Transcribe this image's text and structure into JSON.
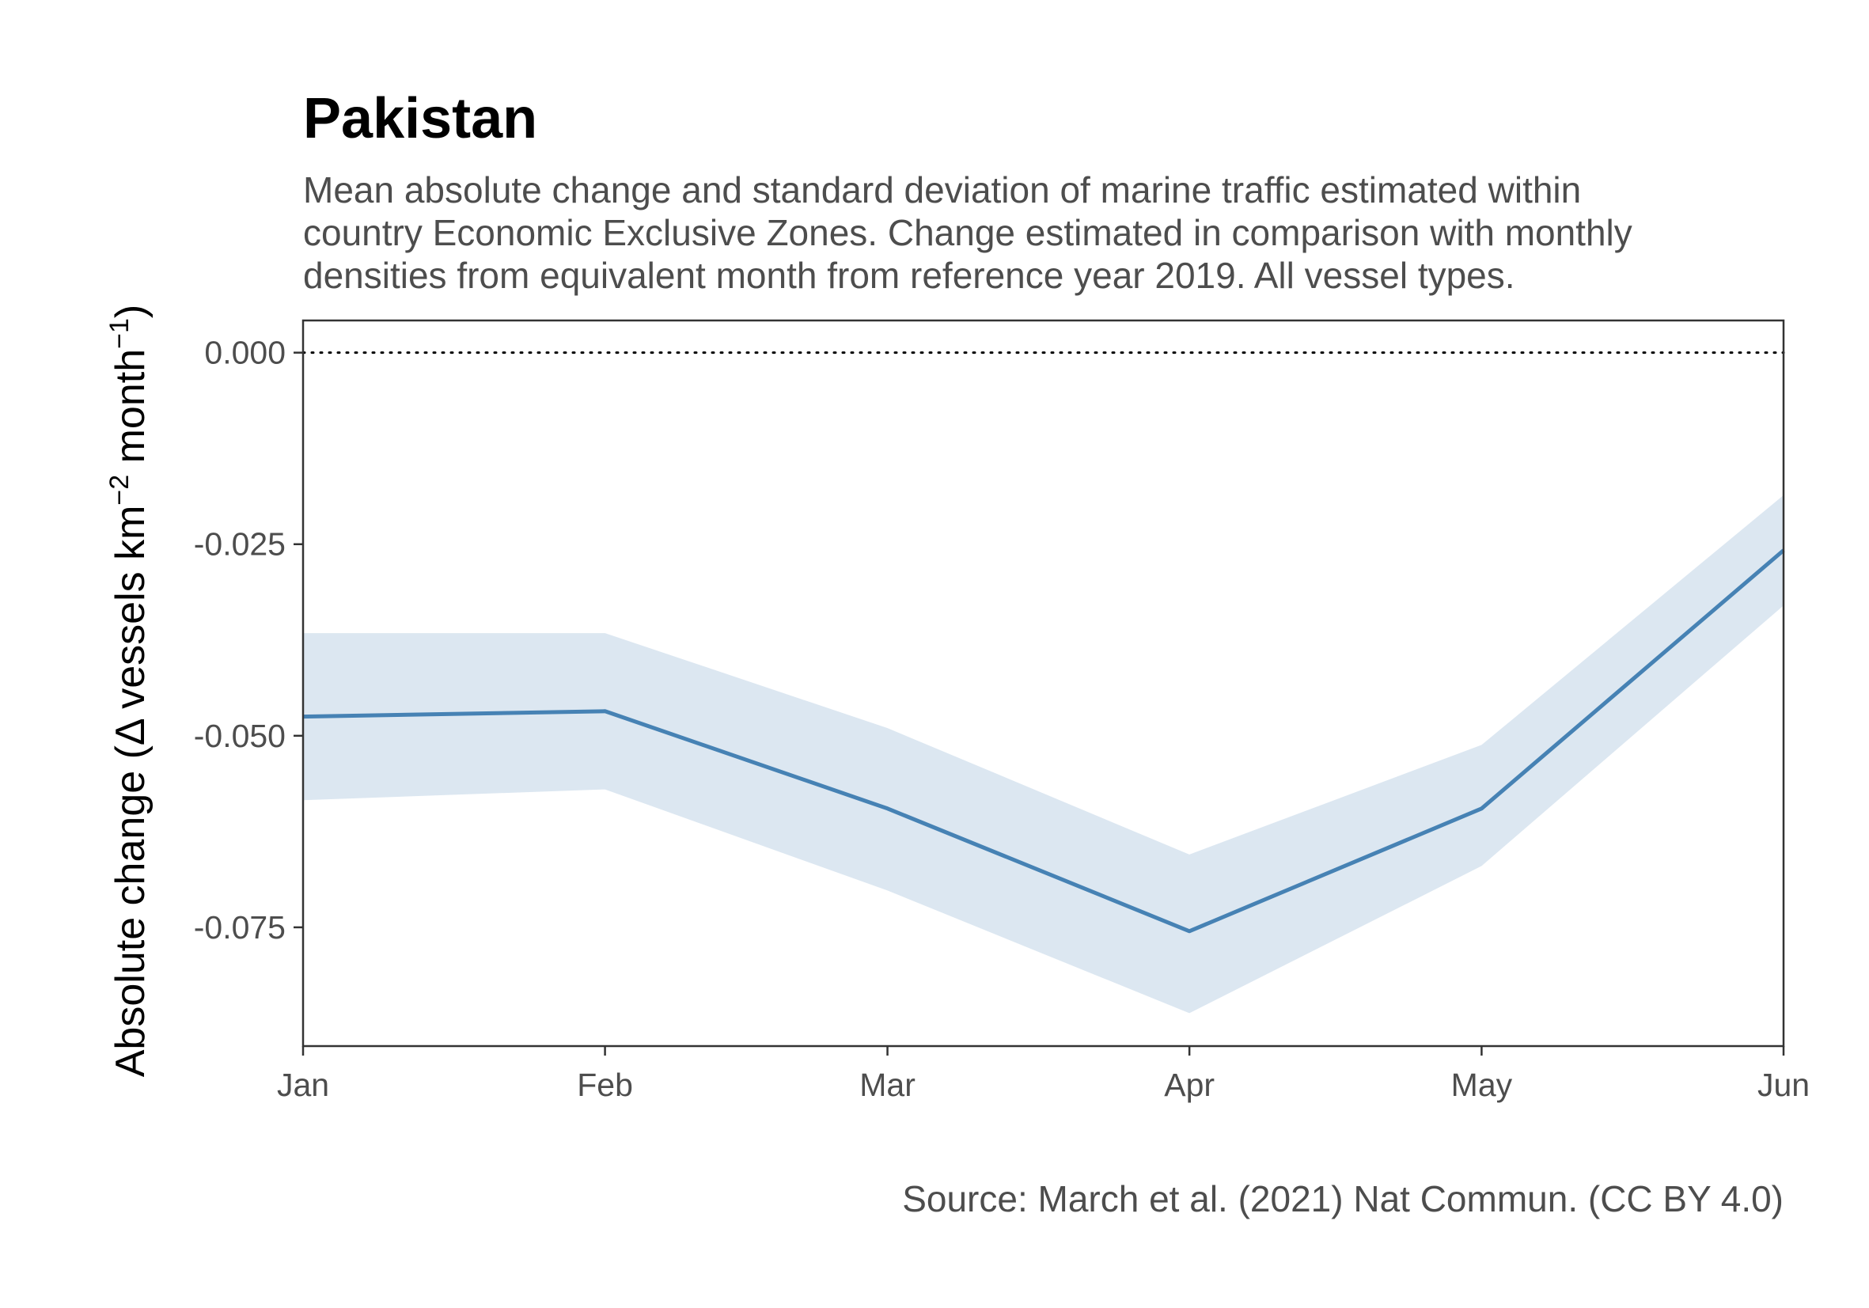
{
  "chart_data": {
    "type": "line",
    "title": "Pakistan",
    "subtitle": [
      "Mean absolute change and standard deviation of marine traffic estimated within",
      "country Economic Exclusive Zones. Change estimated in comparison with monthly",
      "densities from equivalent month from reference year 2019. All vessel types."
    ],
    "ylabel_parts": {
      "main": "Absolute change (",
      "delta": "Δ",
      "mid": " vessels km",
      "sup1": "−2",
      "mid2": " month",
      "sup2": "−1",
      "close": ")"
    },
    "xlabel": "",
    "caption": "Source: March et al. (2021) Nat Commun. (CC BY 4.0)",
    "x": [
      "Jan",
      "Feb",
      "Mar",
      "Apr",
      "May",
      "Jun"
    ],
    "x_days": [
      1,
      32,
      61,
      92,
      122,
      153
    ],
    "series": [
      {
        "values": [
          -0.0475,
          -0.0468,
          -0.0595,
          -0.0755,
          -0.0595,
          -0.0258
        ],
        "lower": [
          -0.0584,
          -0.057,
          -0.0702,
          -0.0862,
          -0.067,
          -0.033
        ],
        "upper": [
          -0.0366,
          -0.0366,
          -0.049,
          -0.0655,
          -0.0512,
          -0.0186
        ]
      }
    ],
    "yticks": [
      "0.000",
      "-0.025",
      "-0.050",
      "-0.075"
    ],
    "ytick_values": [
      0,
      -0.025,
      -0.05,
      -0.075
    ],
    "ylim": [
      -0.0905,
      0.0042
    ],
    "reference_line": 0,
    "grid": false,
    "legend": "none",
    "colors": {
      "line": "#4682b4",
      "band": "#dce7f1",
      "frame": "#333333"
    }
  }
}
